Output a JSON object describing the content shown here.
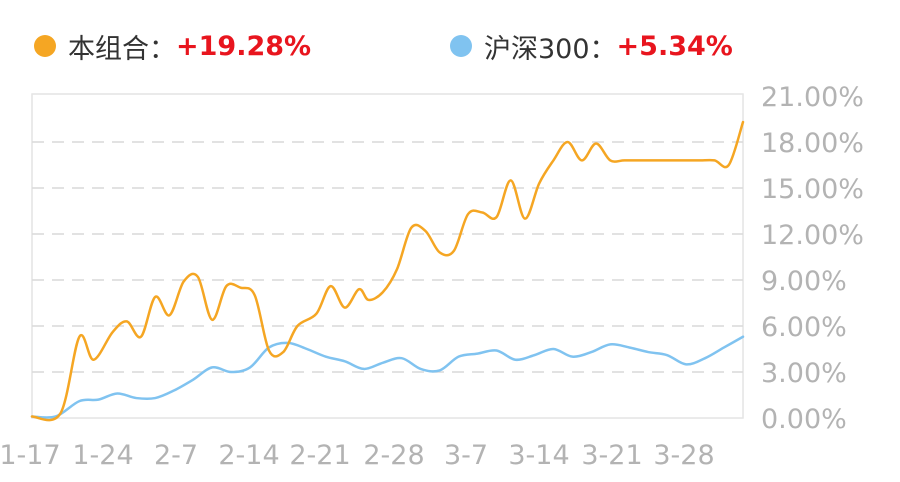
{
  "legend": [
    {
      "name": "本组合",
      "sep": "：",
      "value": "+19.28%",
      "color": "#f5a623"
    },
    {
      "name": "沪深300",
      "sep": "：",
      "value": "+5.34%",
      "color": "#80c3f0"
    }
  ],
  "chart_data": {
    "type": "line",
    "x_tick_labels": [
      "1-17",
      "1-24",
      "2-7",
      "2-14",
      "2-21",
      "2-28",
      "3-7",
      "3-14",
      "3-21",
      "3-28"
    ],
    "y_tick_labels": [
      "0.00%",
      "3.00%",
      "6.00%",
      "9.00%",
      "12.00%",
      "15.00%",
      "18.00%",
      "21.00%"
    ],
    "ylim": [
      0,
      21
    ],
    "grid": true,
    "series": [
      {
        "name": "本组合",
        "color": "#f5a623",
        "x": [
          0,
          0.6,
          1,
          1.3,
          1.7,
          2,
          2.3,
          2.6,
          2.9,
          3.2,
          3.5,
          3.8,
          4.1,
          4.4,
          4.7,
          5,
          5.3,
          5.6,
          6,
          6.3,
          6.6,
          6.9,
          7.1,
          7.4,
          7.7,
          8,
          8.3,
          8.6,
          8.9,
          9.2,
          9.5,
          9.8,
          10.1,
          10.4,
          10.7,
          11,
          11.3,
          11.6,
          11.9,
          12.2,
          12.5,
          12.9,
          13.2,
          13.5,
          13.8,
          14.1,
          14.4,
          14.7,
          15
        ],
        "values": [
          0.1,
          0.3,
          5.3,
          3.8,
          5.6,
          6.3,
          5.3,
          7.9,
          6.7,
          8.9,
          9.2,
          6.4,
          8.6,
          8.5,
          8.0,
          4.4,
          4.3,
          6.0,
          6.8,
          8.6,
          7.2,
          8.4,
          7.7,
          8.2,
          9.7,
          12.4,
          12.2,
          10.8,
          10.9,
          13.3,
          13.4,
          13.1,
          15.5,
          13.0,
          15.3,
          16.8,
          18.0,
          16.8,
          17.9,
          16.8,
          16.8,
          16.8,
          16.8,
          16.8,
          16.8,
          16.8,
          16.8,
          16.5,
          19.3
        ]
      },
      {
        "name": "沪深300",
        "color": "#80c3f0",
        "x": [
          0,
          0.5,
          1,
          1.4,
          1.8,
          2.2,
          2.6,
          3,
          3.4,
          3.8,
          4.2,
          4.6,
          5,
          5.4,
          5.8,
          6.2,
          6.6,
          7,
          7.4,
          7.8,
          8.2,
          8.6,
          9,
          9.4,
          9.8,
          10.2,
          10.6,
          11,
          11.4,
          11.8,
          12.2,
          12.6,
          13,
          13.4,
          13.8,
          14.2,
          14.6,
          15
        ],
        "values": [
          0.1,
          0.1,
          1.1,
          1.2,
          1.6,
          1.3,
          1.3,
          1.8,
          2.5,
          3.3,
          3.0,
          3.3,
          4.6,
          4.9,
          4.5,
          4.0,
          3.7,
          3.2,
          3.6,
          3.9,
          3.2,
          3.1,
          4.0,
          4.2,
          4.4,
          3.8,
          4.1,
          4.5,
          4.0,
          4.3,
          4.8,
          4.6,
          4.3,
          4.1,
          3.5,
          3.9,
          4.6,
          5.3
        ]
      }
    ]
  }
}
